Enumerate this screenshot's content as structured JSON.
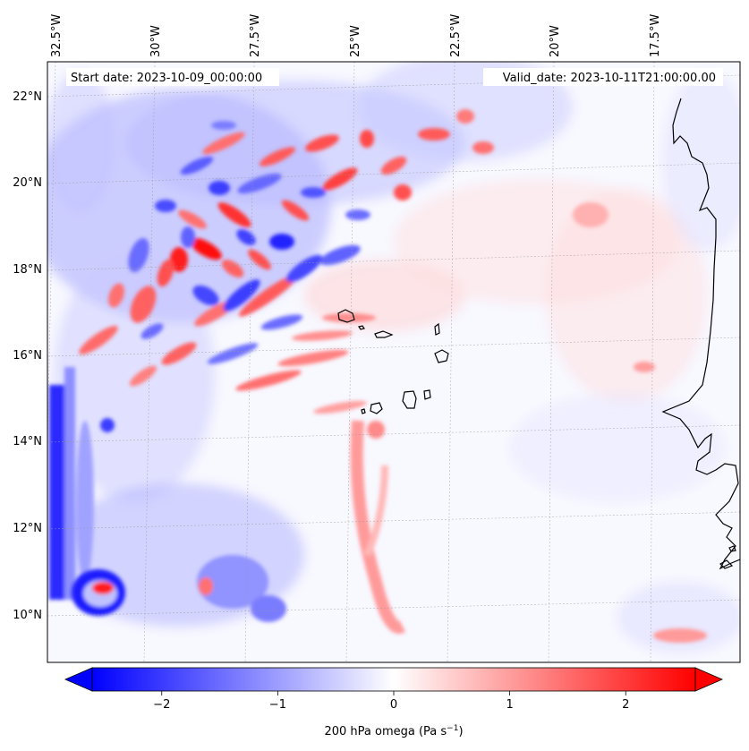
{
  "map": {
    "start_date": "Start date: 2023-10-09_00:00:00",
    "valid_date": "Valid_date: 2023-10-11T21:00:00.00",
    "lon_labels": [
      "32.5°W",
      "30°W",
      "27.5°W",
      "25°W",
      "22.5°W",
      "20°W",
      "17.5°W"
    ],
    "lat_labels": [
      "22°N",
      "20°N",
      "18°N",
      "16°N",
      "14°N",
      "12°N",
      "10°N"
    ],
    "extent": {
      "lon_min": -32.6,
      "lon_max": -15.0,
      "lat_min": 8.9,
      "lat_max": 22.8
    },
    "field": "200 hPa omega",
    "features": [
      {
        "name": "red-updraft-cluster",
        "lon": -29.5,
        "lat": 18.3,
        "value": 2.3
      },
      {
        "name": "blue-cyclone-core",
        "lon": -31.5,
        "lat": 10.5,
        "value": -2.4
      },
      {
        "name": "red-cyclone-center",
        "lon": -31.2,
        "lat": 10.55,
        "value": 2.0
      },
      {
        "name": "western-blue-band",
        "lon": -32.3,
        "lat": 12.0,
        "value": -2.2
      }
    ]
  },
  "colorbar": {
    "label": "200 hPa omega (Pa s",
    "label_sup": "−1",
    "label_end": ")",
    "vmin": -2.6,
    "vmax": 2.6,
    "ticks": [
      -2,
      -1,
      0,
      1,
      2
    ],
    "tick_labels": [
      "−2",
      "−1",
      "0",
      "1",
      "2"
    ],
    "colors": {
      "neg": "#0000ff",
      "zero": "#ffffff",
      "pos": "#ff0000"
    }
  }
}
